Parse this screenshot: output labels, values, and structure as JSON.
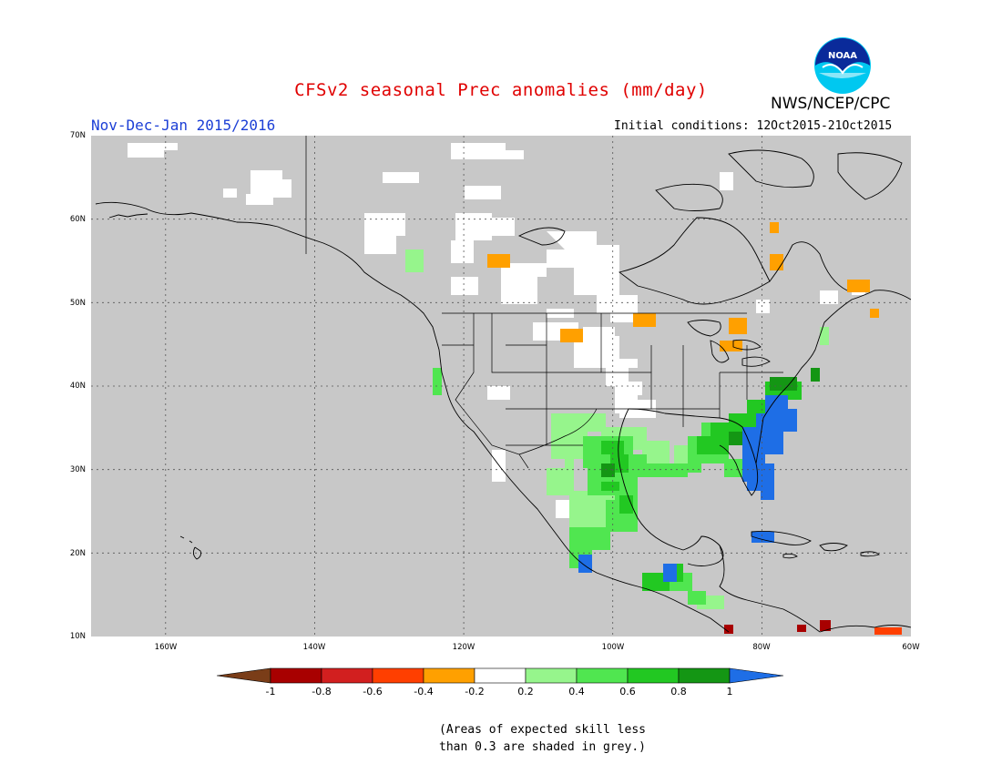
{
  "title": "CFSv2 seasonal Prec anomalies (mm/day)",
  "agency": "NWS/NCEP/CPC",
  "logo_text": "NOAA",
  "period": "Nov-Dec-Jan 2015/2016",
  "initial_conditions": "Initial conditions: 12Oct2015-21Oct2015",
  "map": {
    "region": "North America",
    "lon_range": [
      -170,
      -60
    ],
    "lat_range": [
      10,
      70
    ],
    "lat_labels": [
      {
        "lat": 70,
        "text": "70N"
      },
      {
        "lat": 60,
        "text": "60N"
      },
      {
        "lat": 50,
        "text": "50N"
      },
      {
        "lat": 40,
        "text": "40N"
      },
      {
        "lat": 30,
        "text": "30N"
      },
      {
        "lat": 20,
        "text": "20N"
      },
      {
        "lat": 10,
        "text": "10N"
      }
    ],
    "lon_labels": [
      {
        "lon": -160,
        "text": "160W"
      },
      {
        "lon": -140,
        "text": "140W"
      },
      {
        "lon": -120,
        "text": "120W"
      },
      {
        "lon": -100,
        "text": "100W"
      },
      {
        "lon": -80,
        "text": "80W"
      },
      {
        "lon": -60,
        "text": "60W"
      }
    ],
    "grid": "dotted",
    "low_skill_color": "#c8c8c8",
    "ocean_color": "#c8c8c8"
  },
  "colorbar": {
    "colors": [
      "#7a3d18",
      "#a80000",
      "#d21f1f",
      "#ff3f00",
      "#ffa000",
      "#ffffff",
      "#96f58c",
      "#50e650",
      "#22c822",
      "#149614",
      "#1e6ee6"
    ],
    "tick_labels": [
      "-1",
      "-0.8",
      "-0.6",
      "-0.4",
      "-0.2",
      "0.2",
      "0.4",
      "0.6",
      "0.8",
      "1"
    ],
    "bounds": [
      -1,
      -0.8,
      -0.6,
      -0.4,
      -0.2,
      0.2,
      0.4,
      0.6,
      0.8,
      1
    ]
  },
  "note_line1": "(Areas of expected skill less",
  "note_line2": "than 0.3 are shaded in grey.)"
}
